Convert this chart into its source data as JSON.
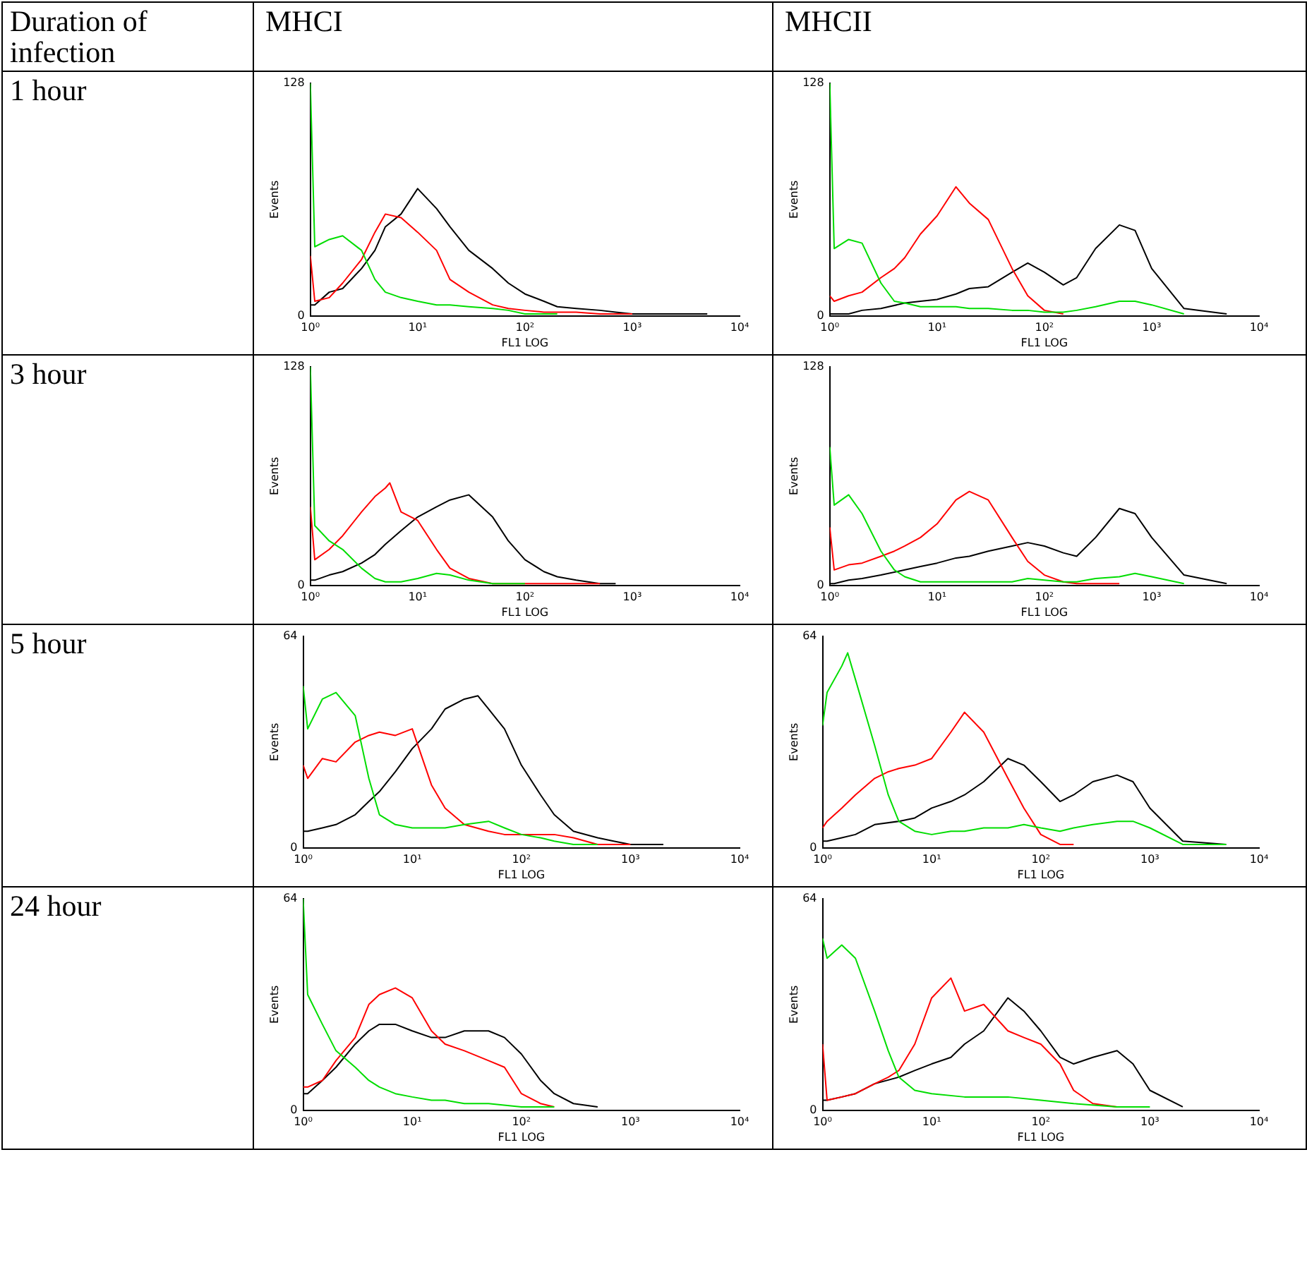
{
  "chart_data": [
    {
      "type": "line",
      "title": "MHCI",
      "annotations": [
        "Duration of infection",
        "1 hour"
      ],
      "xlabel": "FL1 LOG",
      "ylabel": "Events",
      "log": "x",
      "grid": false,
      "legend": false,
      "marker": "none",
      "line_style": "solid",
      "xlim": [
        1,
        10000
      ],
      "xticks": [
        {
          "value": 1,
          "label": "10⁰"
        },
        {
          "value": 10,
          "label": "10¹"
        },
        {
          "value": 100,
          "label": "10²"
        },
        {
          "value": 1000,
          "label": "10³"
        },
        {
          "value": 10000,
          "label": "10⁴"
        }
      ],
      "ylim": [
        0,
        128
      ],
      "yticks": [
        0,
        128
      ],
      "series": [
        {
          "color": "#00dd00",
          "x": [
            1,
            1.1,
            1.5,
            2,
            3,
            4,
            5,
            7,
            10,
            15,
            20,
            30,
            50,
            70,
            100,
            200
          ],
          "values": [
            128,
            38,
            42,
            44,
            36,
            20,
            13,
            10,
            8,
            6,
            6,
            5,
            4,
            3,
            1,
            1
          ]
        },
        {
          "color": "#ff0000",
          "x": [
            1,
            1.1,
            1.5,
            2,
            3,
            4,
            5,
            7,
            10,
            15,
            20,
            30,
            50,
            70,
            100,
            150,
            200,
            300,
            500,
            700,
            1000
          ],
          "values": [
            33,
            8,
            10,
            18,
            31,
            46,
            56,
            54,
            46,
            36,
            20,
            13,
            6,
            4,
            3,
            2,
            2,
            2,
            1,
            1,
            1
          ]
        },
        {
          "color": "#000000",
          "x": [
            1,
            1.1,
            1.5,
            2,
            3,
            4,
            5,
            7,
            10,
            15,
            20,
            30,
            50,
            70,
            100,
            150,
            200,
            300,
            500,
            700,
            1000,
            2000,
            5000
          ],
          "values": [
            6,
            6,
            13,
            15,
            26,
            36,
            49,
            56,
            70,
            59,
            49,
            36,
            26,
            18,
            12,
            8,
            5,
            4,
            3,
            2,
            1,
            1,
            1
          ]
        }
      ]
    },
    {
      "type": "line",
      "title": "MHCII",
      "xlabel": "FL1 LOG",
      "ylabel": "Events",
      "log": "x",
      "grid": false,
      "legend": false,
      "marker": "none",
      "line_style": "solid",
      "xlim": [
        1,
        10000
      ],
      "xticks": [
        {
          "value": 1,
          "label": "10⁰"
        },
        {
          "value": 10,
          "label": "10¹"
        },
        {
          "value": 100,
          "label": "10²"
        },
        {
          "value": 1000,
          "label": "10³"
        },
        {
          "value": 10000,
          "label": "10⁴"
        }
      ],
      "ylim": [
        0,
        128
      ],
      "yticks": [
        0,
        128
      ],
      "series": [
        {
          "color": "#00dd00",
          "x": [
            1,
            1.1,
            1.5,
            2,
            3,
            4,
            5,
            7,
            10,
            15,
            20,
            30,
            50,
            70,
            100,
            150,
            200,
            300,
            500,
            700,
            1000,
            2000
          ],
          "values": [
            128,
            37,
            42,
            40,
            18,
            8,
            7,
            5,
            5,
            5,
            4,
            4,
            3,
            3,
            2,
            2,
            3,
            5,
            8,
            8,
            6,
            1
          ]
        },
        {
          "color": "#ff0000",
          "x": [
            1,
            1.1,
            1.5,
            2,
            3,
            4,
            5,
            7,
            10,
            15,
            20,
            30,
            50,
            70,
            100,
            150
          ],
          "values": [
            11,
            8,
            11,
            13,
            21,
            26,
            32,
            45,
            55,
            71,
            62,
            53,
            26,
            11,
            3,
            1
          ]
        },
        {
          "color": "#000000",
          "x": [
            1,
            1.1,
            1.5,
            2,
            3,
            5,
            7,
            10,
            15,
            20,
            30,
            50,
            70,
            100,
            150,
            200,
            300,
            500,
            700,
            1000,
            2000,
            5000
          ],
          "values": [
            1,
            1,
            1,
            3,
            4,
            7,
            8,
            9,
            12,
            15,
            16,
            24,
            29,
            24,
            17,
            21,
            37,
            50,
            47,
            26,
            4,
            1
          ]
        }
      ]
    },
    {
      "type": "line",
      "annotations": [
        "3 hour"
      ],
      "xlabel": "FL1 LOG",
      "ylabel": "Events",
      "log": "x",
      "grid": false,
      "legend": false,
      "marker": "none",
      "line_style": "solid",
      "xlim": [
        1,
        10000
      ],
      "xticks": [
        {
          "value": 1,
          "label": "10⁰"
        },
        {
          "value": 10,
          "label": "10¹"
        },
        {
          "value": 100,
          "label": "10²"
        },
        {
          "value": 1000,
          "label": "10³"
        },
        {
          "value": 10000,
          "label": "10⁴"
        }
      ],
      "ylim": [
        0,
        128
      ],
      "yticks": [
        0,
        128
      ],
      "series": [
        {
          "color": "#00dd00",
          "x": [
            1,
            1.1,
            1.5,
            2,
            3,
            4,
            5,
            7,
            10,
            15,
            20,
            30,
            50,
            70,
            100
          ],
          "values": [
            128,
            35,
            26,
            21,
            10,
            4,
            2,
            2,
            4,
            7,
            6,
            3,
            1,
            1,
            1
          ]
        },
        {
          "color": "#ff0000",
          "x": [
            1,
            1.1,
            1.5,
            2,
            3,
            4,
            5,
            5.5,
            7,
            10,
            15,
            20,
            30,
            50,
            100,
            200,
            300,
            500
          ],
          "values": [
            46,
            15,
            21,
            29,
            43,
            52,
            57,
            60,
            43,
            38,
            21,
            10,
            4,
            1,
            1,
            1,
            1,
            1
          ]
        },
        {
          "color": "#000000",
          "x": [
            1,
            1.1,
            1.5,
            2,
            3,
            4,
            5,
            7,
            10,
            15,
            20,
            30,
            50,
            70,
            100,
            150,
            200,
            300,
            500,
            700
          ],
          "values": [
            3,
            3,
            6,
            8,
            13,
            18,
            24,
            32,
            40,
            46,
            50,
            53,
            40,
            26,
            15,
            8,
            5,
            3,
            1,
            1
          ]
        }
      ]
    },
    {
      "type": "line",
      "xlabel": "FL1 LOG",
      "ylabel": "Events",
      "log": "x",
      "grid": false,
      "legend": false,
      "marker": "none",
      "line_style": "solid",
      "xlim": [
        1,
        10000
      ],
      "xticks": [
        {
          "value": 1,
          "label": "10⁰"
        },
        {
          "value": 10,
          "label": "10¹"
        },
        {
          "value": 100,
          "label": "10²"
        },
        {
          "value": 1000,
          "label": "10³"
        },
        {
          "value": 10000,
          "label": "10⁴"
        }
      ],
      "ylim": [
        0,
        128
      ],
      "yticks": [
        0,
        128
      ],
      "series": [
        {
          "color": "#00dd00",
          "x": [
            1,
            1.1,
            1.5,
            2,
            3,
            4,
            5,
            7,
            10,
            20,
            30,
            50,
            70,
            100,
            150,
            200,
            300,
            500,
            700,
            1000,
            2000
          ],
          "values": [
            81,
            47,
            53,
            42,
            20,
            9,
            5,
            2,
            2,
            2,
            2,
            2,
            4,
            3,
            2,
            2,
            4,
            5,
            7,
            5,
            1
          ]
        },
        {
          "color": "#ff0000",
          "x": [
            1,
            1.1,
            1.5,
            2,
            3,
            4,
            5,
            7,
            10,
            15,
            20,
            30,
            50,
            70,
            100,
            150,
            200,
            500
          ],
          "values": [
            34,
            9,
            12,
            13,
            17,
            20,
            23,
            28,
            36,
            50,
            55,
            50,
            28,
            14,
            6,
            2,
            1,
            1
          ]
        },
        {
          "color": "#000000",
          "x": [
            1,
            1.1,
            1.5,
            2,
            3,
            5,
            7,
            10,
            15,
            20,
            30,
            50,
            70,
            100,
            150,
            200,
            300,
            500,
            700,
            1000,
            2000,
            5000
          ],
          "values": [
            1,
            1,
            3,
            4,
            6,
            9,
            11,
            13,
            16,
            17,
            20,
            23,
            25,
            23,
            19,
            17,
            28,
            45,
            42,
            28,
            6,
            1
          ]
        }
      ]
    },
    {
      "type": "line",
      "annotations": [
        "5 hour"
      ],
      "xlabel": "FL1 LOG",
      "ylabel": "Events",
      "log": "x",
      "grid": false,
      "legend": false,
      "marker": "none",
      "line_style": "solid",
      "xlim": [
        1,
        10000
      ],
      "xticks": [
        {
          "value": 1,
          "label": "10⁰"
        },
        {
          "value": 10,
          "label": "10¹"
        },
        {
          "value": 100,
          "label": "10²"
        },
        {
          "value": 1000,
          "label": "10³"
        },
        {
          "value": 10000,
          "label": "10⁴"
        }
      ],
      "ylim": [
        0,
        64
      ],
      "yticks": [
        0,
        64
      ],
      "series": [
        {
          "color": "#00dd00",
          "x": [
            1,
            1.1,
            1.5,
            2,
            3,
            4,
            5,
            7,
            10,
            15,
            20,
            30,
            50,
            70,
            100,
            150,
            200,
            300,
            500
          ],
          "values": [
            49,
            36,
            45,
            47,
            40,
            21,
            10,
            7,
            6,
            6,
            6,
            7,
            8,
            6,
            4,
            3,
            2,
            1,
            1
          ]
        },
        {
          "color": "#ff0000",
          "x": [
            1,
            1.1,
            1.5,
            2,
            3,
            4,
            5,
            7,
            10,
            15,
            20,
            30,
            50,
            70,
            100,
            150,
            200,
            300,
            500,
            700,
            1000
          ],
          "values": [
            25,
            21,
            27,
            26,
            32,
            34,
            35,
            34,
            36,
            19,
            12,
            7,
            5,
            4,
            4,
            4,
            4,
            3,
            1,
            1,
            1
          ]
        },
        {
          "color": "#000000",
          "x": [
            1,
            1.1,
            1.5,
            2,
            3,
            4,
            5,
            7,
            10,
            15,
            20,
            30,
            40,
            50,
            70,
            100,
            150,
            200,
            300,
            500,
            700,
            1000,
            2000
          ],
          "values": [
            5,
            5,
            6,
            7,
            10,
            14,
            17,
            23,
            30,
            36,
            42,
            45,
            46,
            42,
            36,
            25,
            16,
            10,
            5,
            3,
            2,
            1,
            1
          ]
        }
      ]
    },
    {
      "type": "line",
      "xlabel": "FL1 LOG",
      "ylabel": "Events",
      "log": "x",
      "grid": false,
      "legend": false,
      "marker": "none",
      "line_style": "solid",
      "xlim": [
        1,
        10000
      ],
      "xticks": [
        {
          "value": 1,
          "label": "10⁰"
        },
        {
          "value": 10,
          "label": "10¹"
        },
        {
          "value": 100,
          "label": "10²"
        },
        {
          "value": 1000,
          "label": "10³"
        },
        {
          "value": 10000,
          "label": "10⁴"
        }
      ],
      "ylim": [
        0,
        64
      ],
      "yticks": [
        0,
        64
      ],
      "series": [
        {
          "color": "#00dd00",
          "x": [
            1,
            1.1,
            1.5,
            1.7,
            2,
            3,
            4,
            5,
            7,
            10,
            15,
            20,
            30,
            50,
            70,
            100,
            150,
            200,
            300,
            500,
            700,
            1000,
            2000,
            5000
          ],
          "values": [
            37,
            47,
            55,
            59,
            51,
            31,
            16,
            8,
            5,
            4,
            5,
            5,
            6,
            6,
            7,
            6,
            5,
            6,
            7,
            8,
            8,
            6,
            1,
            1
          ]
        },
        {
          "color": "#ff0000",
          "x": [
            1,
            1.1,
            1.5,
            2,
            3,
            4,
            5,
            7,
            10,
            15,
            20,
            30,
            50,
            70,
            100,
            150,
            200
          ],
          "values": [
            6,
            8,
            12,
            16,
            21,
            23,
            24,
            25,
            27,
            35,
            41,
            35,
            21,
            12,
            4,
            1,
            1
          ]
        },
        {
          "color": "#000000",
          "x": [
            1,
            1.1,
            1.5,
            2,
            3,
            5,
            7,
            10,
            15,
            20,
            30,
            50,
            70,
            100,
            150,
            200,
            300,
            500,
            700,
            1000,
            2000,
            5000
          ],
          "values": [
            2,
            2,
            3,
            4,
            7,
            8,
            9,
            12,
            14,
            16,
            20,
            27,
            25,
            20,
            14,
            16,
            20,
            22,
            20,
            12,
            2,
            1
          ]
        }
      ]
    },
    {
      "type": "line",
      "annotations": [
        "24 hour"
      ],
      "xlabel": "FL1 LOG",
      "ylabel": "Events",
      "log": "x",
      "grid": false,
      "legend": false,
      "marker": "none",
      "line_style": "solid",
      "xlim": [
        1,
        10000
      ],
      "xticks": [
        {
          "value": 1,
          "label": "10⁰"
        },
        {
          "value": 10,
          "label": "10¹"
        },
        {
          "value": 100,
          "label": "10²"
        },
        {
          "value": 1000,
          "label": "10³"
        },
        {
          "value": 10000,
          "label": "10⁴"
        }
      ],
      "ylim": [
        0,
        64
      ],
      "yticks": [
        0,
        64
      ],
      "series": [
        {
          "color": "#00dd00",
          "x": [
            1,
            1.1,
            1.5,
            2,
            3,
            4,
            5,
            7,
            10,
            15,
            20,
            30,
            50,
            100,
            200
          ],
          "values": [
            64,
            35,
            26,
            18,
            13,
            9,
            7,
            5,
            4,
            3,
            3,
            2,
            2,
            1,
            1
          ]
        },
        {
          "color": "#ff0000",
          "x": [
            1,
            1.1,
            1.5,
            2,
            3,
            4,
            5,
            7,
            10,
            15,
            20,
            30,
            50,
            70,
            100,
            150,
            200
          ],
          "values": [
            7,
            7,
            9,
            15,
            22,
            32,
            35,
            37,
            34,
            24,
            20,
            18,
            15,
            13,
            5,
            2,
            1
          ]
        },
        {
          "color": "#000000",
          "x": [
            1,
            1.1,
            1.5,
            2,
            3,
            4,
            5,
            7,
            10,
            15,
            20,
            30,
            50,
            70,
            100,
            150,
            200,
            300,
            500
          ],
          "values": [
            5,
            5,
            9,
            13,
            20,
            24,
            26,
            26,
            24,
            22,
            22,
            24,
            24,
            22,
            17,
            9,
            5,
            2,
            1
          ]
        }
      ]
    },
    {
      "type": "line",
      "xlabel": "FL1 LOG",
      "ylabel": "Events",
      "log": "x",
      "grid": false,
      "legend": false,
      "marker": "none",
      "line_style": "solid",
      "xlim": [
        1,
        10000
      ],
      "xticks": [
        {
          "value": 1,
          "label": "10⁰"
        },
        {
          "value": 10,
          "label": "10¹"
        },
        {
          "value": 100,
          "label": "10²"
        },
        {
          "value": 1000,
          "label": "10³"
        },
        {
          "value": 10000,
          "label": "10⁴"
        }
      ],
      "ylim": [
        0,
        64
      ],
      "yticks": [
        0,
        64
      ],
      "series": [
        {
          "color": "#00dd00",
          "x": [
            1,
            1.1,
            1.5,
            2,
            3,
            4,
            5,
            7,
            10,
            20,
            50,
            100,
            200,
            500,
            1000
          ],
          "values": [
            52,
            46,
            50,
            46,
            30,
            18,
            10,
            6,
            5,
            4,
            4,
            3,
            2,
            1,
            1
          ]
        },
        {
          "color": "#ff0000",
          "x": [
            1,
            1.1,
            1.5,
            2,
            3,
            4,
            5,
            7,
            10,
            15,
            20,
            30,
            50,
            70,
            100,
            150,
            200,
            300,
            500
          ],
          "values": [
            20,
            3,
            4,
            5,
            8,
            10,
            12,
            20,
            34,
            40,
            30,
            32,
            24,
            22,
            20,
            14,
            6,
            2,
            1
          ]
        },
        {
          "color": "#000000",
          "x": [
            1,
            1.1,
            1.5,
            2,
            3,
            5,
            7,
            10,
            15,
            20,
            30,
            50,
            70,
            100,
            150,
            200,
            300,
            500,
            700,
            1000,
            2000
          ],
          "values": [
            3,
            3,
            4,
            5,
            8,
            10,
            12,
            14,
            16,
            20,
            24,
            34,
            30,
            24,
            16,
            14,
            16,
            18,
            14,
            6,
            1
          ]
        }
      ]
    }
  ]
}
